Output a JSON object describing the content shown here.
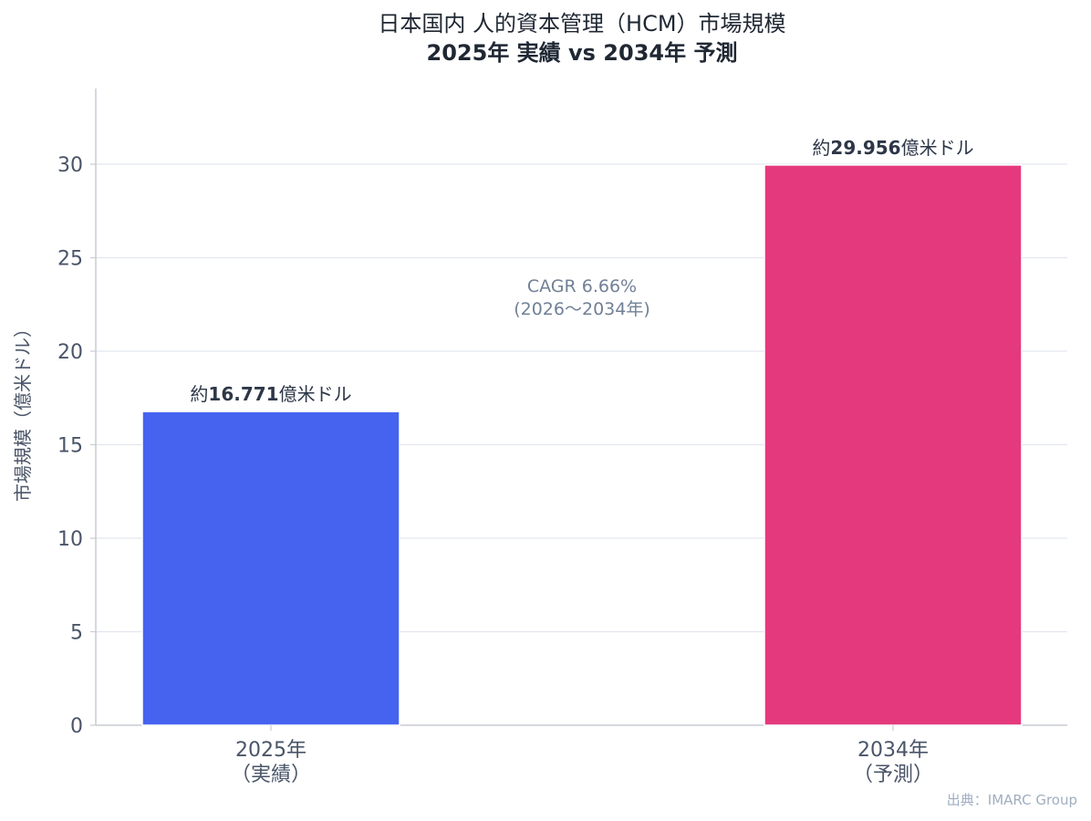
{
  "chart_data": {
    "type": "bar",
    "title_line1": "日本国内 人的資本管理（HCM）市場規模",
    "title_line2": "2025年 実績 vs 2034年 予測",
    "ylabel": "市場規模（億米ドル）",
    "xlabel": "",
    "ylim": [
      0,
      34
    ],
    "yticks": [
      0,
      5,
      10,
      15,
      20,
      25,
      30
    ],
    "categories": [
      {
        "line1": "2025年",
        "line2": "（実績）"
      },
      {
        "line1": "2034年",
        "line2": "（予測）"
      }
    ],
    "values": [
      16.771,
      29.956
    ],
    "bar_labels": [
      {
        "prefix": "約",
        "value": "16.771",
        "suffix": "億米ドル"
      },
      {
        "prefix": "約",
        "value": "29.956",
        "suffix": "億米ドル"
      }
    ],
    "colors": [
      "#4563ef",
      "#e5397e"
    ],
    "grid": true,
    "annotation": {
      "line1": "CAGR 6.66%",
      "line2": "(2026〜2034年)"
    },
    "source": "出典：IMARC Group"
  }
}
